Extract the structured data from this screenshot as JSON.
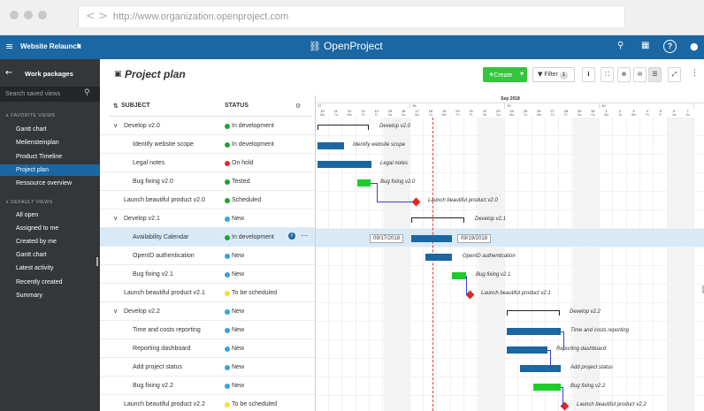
{
  "browser": {
    "url": "http://www.organization.openproject.com",
    "back": "<",
    "forward": ">"
  },
  "topbar": {
    "project_name": "Website Relaunch",
    "logo_text": "OpenProject",
    "help": "?"
  },
  "sidebar": {
    "title": "Work packages",
    "search_placeholder": "Search saved views",
    "favorite_header": "FAVORITE VIEWS",
    "favorite_items": [
      "Gantt chart",
      "Meilensteinplan",
      "Product Timeline",
      "Project plan",
      "Ressource overview"
    ],
    "default_header": "DEFAULT VIEWS",
    "default_items": [
      "All open",
      "Assigned to me",
      "Created by me",
      "Gantt chart",
      "Latest activity",
      "Recently created",
      "Summary"
    ],
    "active_item": "Project plan"
  },
  "toolbar": {
    "title": "Project plan",
    "create_label": "Create",
    "filter_label": "Filter",
    "filter_count": "1"
  },
  "table": {
    "col_subject": "SUBJECT",
    "col_status": "STATUS",
    "rows": [
      {
        "subject": "Develop v2.0",
        "status": "In development",
        "status_color": "#1fa331",
        "parent": true
      },
      {
        "subject": "Identify website scope",
        "status": "In development",
        "status_color": "#1fa331",
        "parent": false
      },
      {
        "subject": "Legal notes",
        "status": "On hold",
        "status_color": "#e5261f",
        "parent": false
      },
      {
        "subject": "Bug fixing v2.0",
        "status": "Tested",
        "status_color": "#1fa331",
        "parent": false
      },
      {
        "subject": "Launch beautiful product v2.0",
        "status": "Scheduled",
        "status_color": "#1fa331",
        "parent": false,
        "top": true
      },
      {
        "subject": "Develop v2.1",
        "status": "New",
        "status_color": "#35a3dd",
        "parent": true
      },
      {
        "subject": "Availability Calendar",
        "status": "In development",
        "status_color": "#1fa331",
        "parent": false,
        "selected": true
      },
      {
        "subject": "OpenID authentication",
        "status": "New",
        "status_color": "#35a3dd",
        "parent": false
      },
      {
        "subject": "Bug fixing v2.1",
        "status": "New",
        "status_color": "#35a3dd",
        "parent": false
      },
      {
        "subject": "Launch beautiful product v2.1",
        "status": "To be scheduled",
        "status_color": "#f0e534",
        "parent": false,
        "top": true
      },
      {
        "subject": "Develop v2.2",
        "status": "New",
        "status_color": "#35a3dd",
        "parent": true
      },
      {
        "subject": "Time and costs reporting",
        "status": "New",
        "status_color": "#35a3dd",
        "parent": false
      },
      {
        "subject": "Reporting dashboard",
        "status": "New",
        "status_color": "#35a3dd",
        "parent": false
      },
      {
        "subject": "Add project status",
        "status": "New",
        "status_color": "#35a3dd",
        "parent": false
      },
      {
        "subject": "Bug fixing v2.2",
        "status": "New",
        "status_color": "#35a3dd",
        "parent": false
      },
      {
        "subject": "Launch beautiful product v2.2",
        "status": "To be scheduled",
        "status_color": "#f0e534",
        "parent": false,
        "top": true
      }
    ]
  },
  "gantt": {
    "month": "Sep 2018",
    "weeks": [
      "37",
      "38",
      "39",
      "40"
    ],
    "day_numbers": [
      "10",
      "11",
      "12",
      "13",
      "14",
      "15",
      "16",
      "17",
      "18",
      "19",
      "20",
      "21",
      "22",
      "23",
      "24",
      "25",
      "26",
      "27",
      "28",
      "29",
      "30",
      "1",
      "2",
      "3",
      "4",
      "5",
      "6",
      "7"
    ],
    "day_names": [
      "Mo",
      "Tu",
      "We",
      "Th",
      "Fr",
      "Sa",
      "Su",
      "Mo",
      "Tu",
      "We",
      "Th",
      "Fr",
      "Sa",
      "Su",
      "Mo",
      "Tu",
      "We",
      "Th",
      "Fr",
      "Sa",
      "Su",
      "Mo",
      "Tu",
      "We",
      "Th",
      "Fr",
      "Sa",
      "Su"
    ],
    "selected_start": "09/17/2018",
    "selected_end": "09/19/2018",
    "labels": [
      "Develop v2.0",
      "Identify website scope",
      "Legal notes",
      "Bug fixing v2.0",
      "Launch beautiful product v2.0",
      "Develop v2.1",
      "",
      "OpenID authentication",
      "Bug fixing v2.1",
      "Launch beautiful product v2.1",
      "Develop v2.2",
      "Time and costs reporting",
      "Reporting dashboard",
      "Add project status",
      "Bug fixing v2.2",
      "Launch beautiful product v2.2"
    ]
  }
}
